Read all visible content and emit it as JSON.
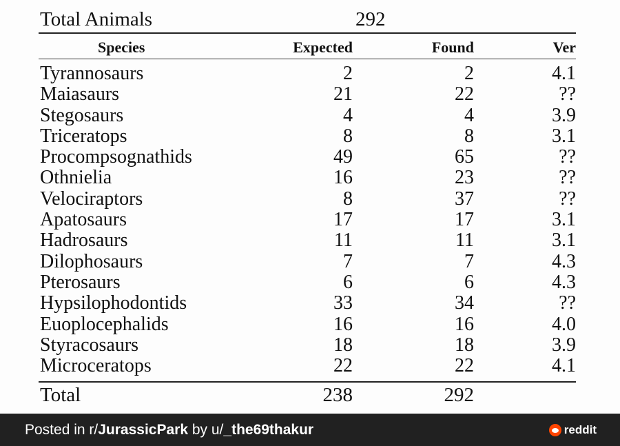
{
  "document": {
    "total_animals_label": "Total Animals",
    "total_animals_value": "292",
    "headers": {
      "species": "Species",
      "expected": "Expected",
      "found": "Found",
      "ver": "Ver"
    },
    "rows": [
      {
        "species": "Tyrannosaurs",
        "expected": "2",
        "found": "2",
        "ver": "4.1"
      },
      {
        "species": "Maiasaurs",
        "expected": "21",
        "found": "22",
        "ver": "??"
      },
      {
        "species": "Stegosaurs",
        "expected": "4",
        "found": "4",
        "ver": "3.9"
      },
      {
        "species": "Triceratops",
        "expected": "8",
        "found": "8",
        "ver": "3.1"
      },
      {
        "species": "Procompsognathids",
        "expected": "49",
        "found": "65",
        "ver": "??"
      },
      {
        "species": "Othnielia",
        "expected": "16",
        "found": "23",
        "ver": "??"
      },
      {
        "species": "Velociraptors",
        "expected": "8",
        "found": "37",
        "ver": "??"
      },
      {
        "species": "Apatosaurs",
        "expected": "17",
        "found": "17",
        "ver": "3.1"
      },
      {
        "species": "Hadrosaurs",
        "expected": "11",
        "found": "11",
        "ver": "3.1"
      },
      {
        "species": "Dilophosaurs",
        "expected": "7",
        "found": "7",
        "ver": "4.3"
      },
      {
        "species": "Pterosaurs",
        "expected": "6",
        "found": "6",
        "ver": "4.3"
      },
      {
        "species": "Hypsilophodontids",
        "expected": "33",
        "found": "34",
        "ver": "??"
      },
      {
        "species": "Euoplocephalids",
        "expected": "16",
        "found": "16",
        "ver": "4.0"
      },
      {
        "species": "Styracosaurs",
        "expected": "18",
        "found": "18",
        "ver": "3.9"
      },
      {
        "species": "Microceratops",
        "expected": "22",
        "found": "22",
        "ver": "4.1"
      }
    ],
    "total": {
      "label": "Total",
      "expected": "238",
      "found": "292"
    }
  },
  "footer": {
    "posted_in_prefix": "Posted in r/",
    "subreddit": "JurassicPark",
    "by_prefix": " by u/",
    "username": "_the69thakur",
    "brand": "reddit",
    "brand_color": "#ff4500",
    "background": "#212121"
  }
}
